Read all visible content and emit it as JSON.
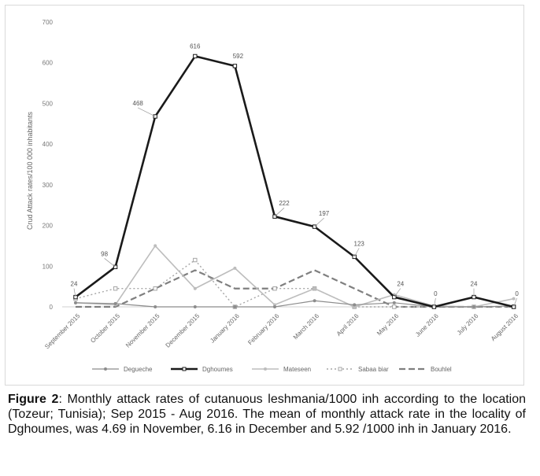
{
  "chart_data": {
    "type": "line",
    "title": "",
    "xlabel": "",
    "ylabel": "Crud Attack rates/100 000 inhabitants",
    "ylim": [
      0,
      700
    ],
    "yticks": [
      0,
      100,
      200,
      300,
      400,
      500,
      600,
      700
    ],
    "grid": false,
    "legend_position": "bottom",
    "categories": [
      "September 2015",
      "October 2015",
      "November 2015",
      "December 2015",
      "January 2016",
      "February 2016",
      "March 2016",
      "April 2016",
      "May 2016",
      "June 2016",
      "July 2016",
      "August 2016"
    ],
    "series": [
      {
        "name": "Degueche",
        "color": "#8c8c8c",
        "style": "solid",
        "width": 1.2,
        "marker": "circle",
        "values": [
          10,
          8,
          0,
          0,
          0,
          0,
          15,
          5,
          10,
          0,
          0,
          2
        ],
        "labels": []
      },
      {
        "name": "Dghoumes",
        "color": "#1a1a1a",
        "style": "solid",
        "width": 2.6,
        "marker": "square",
        "values": [
          24,
          98,
          468,
          616,
          592,
          222,
          197,
          123,
          24,
          0,
          24,
          0
        ],
        "labels": [
          "24",
          "98",
          "468",
          "616",
          "592",
          "222",
          "197",
          "123",
          "24",
          "0",
          "24",
          "0"
        ]
      },
      {
        "name": "Mateseen",
        "color": "#bdbdbd",
        "style": "solid",
        "width": 1.6,
        "marker": "circle",
        "values": [
          10,
          5,
          150,
          45,
          95,
          5,
          45,
          0,
          30,
          2,
          0,
          20
        ],
        "labels": []
      },
      {
        "name": "Sabaa biar",
        "color": "#a6a6a6",
        "style": "dotted",
        "width": 1.4,
        "marker": "square",
        "values": [
          20,
          45,
          45,
          115,
          0,
          45,
          45,
          0,
          0,
          0,
          0,
          0
        ],
        "labels": []
      },
      {
        "name": "Bouhlel",
        "color": "#7f7f7f",
        "style": "dashed",
        "width": 2.2,
        "marker": "none",
        "values": [
          0,
          0,
          45,
          90,
          45,
          45,
          90,
          45,
          0,
          0,
          0,
          0
        ],
        "labels": []
      }
    ]
  },
  "caption": {
    "figure_label": "Figure 2",
    "text": ": Monthly attack rates of cutanuous leshmania/1000 inh according to the location (Tozeur; Tunisia); Sep 2015 - Aug 2016. The mean of monthly attack rate in the locality of Dghoumes, was 4.69 in November, 6.16 in December and 5.92 /1000 inh in January 2016."
  }
}
